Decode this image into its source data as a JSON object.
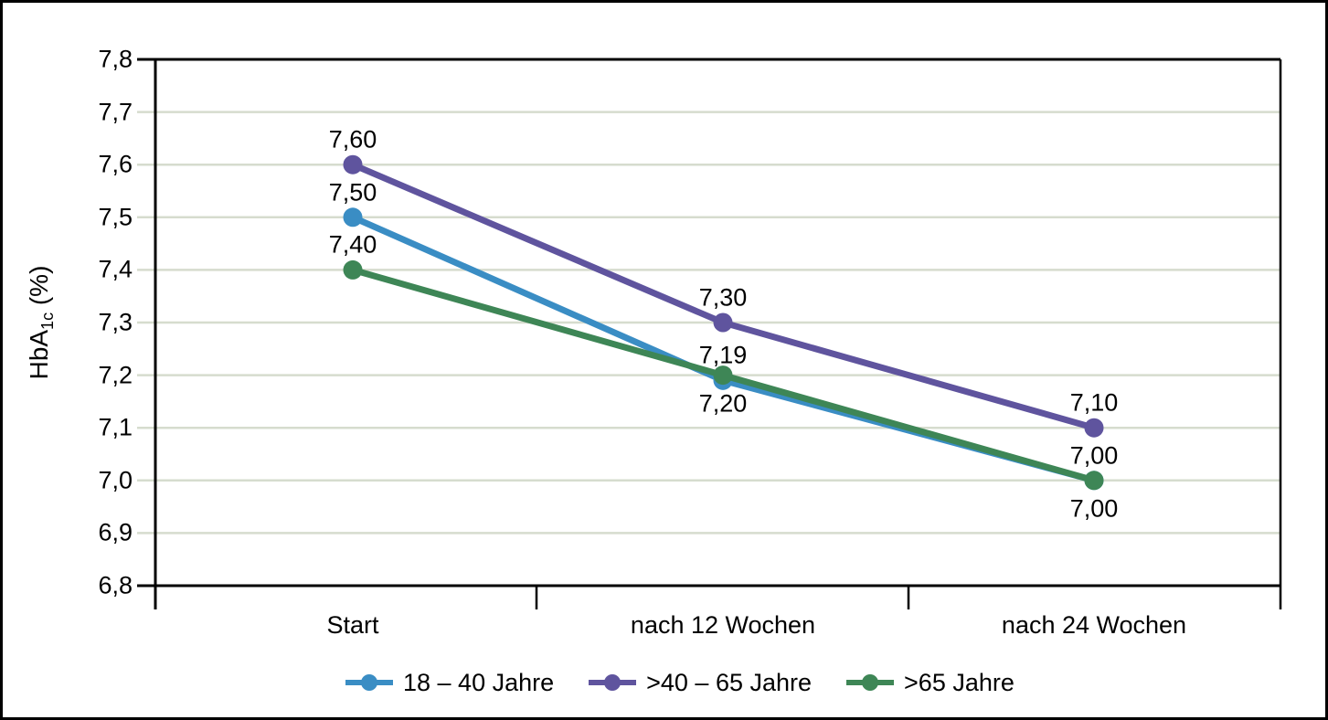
{
  "chart_data": {
    "type": "line",
    "categories": [
      "Start",
      "nach 12 Wochen",
      "nach 24 Wochen"
    ],
    "y_axis": {
      "title_prefix": "HbA",
      "title_sub": "1c",
      "title_suffix": " (%)",
      "min": 6.8,
      "max": 7.8,
      "step": 0.1,
      "tick_labels": [
        "7,8",
        "7,7",
        "7,6",
        "7,5",
        "7,4",
        "7,3",
        "7,2",
        "7,1",
        "7,0",
        "6,9",
        "6,8"
      ]
    },
    "series": [
      {
        "name": "18 – 40 Jahre",
        "color": "#3a8dc4",
        "values": [
          7.5,
          7.19,
          7.0
        ],
        "point_labels": [
          "7,50",
          "7,19",
          "7,00"
        ],
        "label_positions": [
          "above",
          "above",
          "above"
        ]
      },
      {
        "name": ">40 – 65 Jahre",
        "color": "#5f549e",
        "values": [
          7.6,
          7.3,
          7.1
        ],
        "point_labels": [
          "7,60",
          "7,30",
          "7,10"
        ],
        "label_positions": [
          "above",
          "above",
          "above"
        ]
      },
      {
        "name": ">65 Jahre",
        "color": "#3e8656",
        "values": [
          7.4,
          7.2,
          7.0
        ],
        "point_labels": [
          "7,40",
          "7,20",
          "7,00"
        ],
        "label_positions": [
          "above",
          "below",
          "below"
        ]
      }
    ],
    "grid_on": true,
    "grid_color": "#d6dcce",
    "axis_color": "#000000",
    "legend_position": "bottom"
  }
}
